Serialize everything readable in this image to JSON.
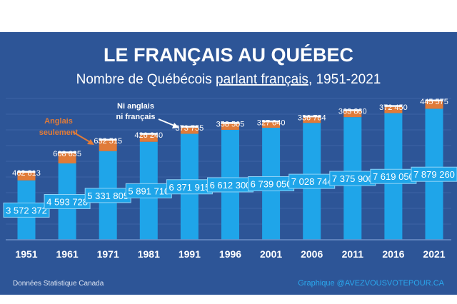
{
  "colors": {
    "background": "#2d5597",
    "french": "#1fa5e9",
    "english_only": "#e07b39",
    "neither": "#ffffff",
    "credit": "#2aa8ee"
  },
  "chart_data": {
    "type": "bar",
    "stacked": true,
    "title": "LE FRANÇAIS AU QUÉBEC",
    "subtitle_before": "Nombre de Québécois ",
    "subtitle_underlined": "parlant français",
    "subtitle_after": ", 1951-2021",
    "categories": [
      "1951",
      "1961",
      "1971",
      "1981",
      "1991",
      "1996",
      "2001",
      "2006",
      "2011",
      "2016",
      "2021"
    ],
    "series": [
      {
        "values": [
          3572372,
          4593728,
          5331805,
          5891710,
          6371915,
          6612300,
          6739050,
          7028744,
          7375900,
          7619050,
          7879260
        ],
        "labels": [
          "3 572 372",
          "4 593 728",
          "5 331 805",
          "5 891 710",
          "6 371 915",
          "6 612 300",
          "6 739 050",
          "7 028 744",
          "7 375 900",
          "7 619 050",
          "7 879 260"
        ]
      },
      {
        "values": [
          462813,
          608635,
          632515,
          426240,
          373755,
          358505,
          327040,
          336784,
          363860,
          372450,
          445575
        ],
        "labels": [
          "462 813",
          "608 635",
          "632 515",
          "426 240",
          "373 755",
          "358 505",
          "327 040",
          "336 784",
          "363 860",
          "372 450",
          "445 575"
        ]
      }
    ],
    "annotations": {
      "english_only": [
        "Anglais",
        "seulement"
      ],
      "neither": [
        "Ni anglais",
        "ni français"
      ]
    },
    "grid": true
  },
  "footer": {
    "source": "Données Statistique Canada",
    "credit": "Graphique @AVEZVOUSVOTEPOUR.CA"
  }
}
